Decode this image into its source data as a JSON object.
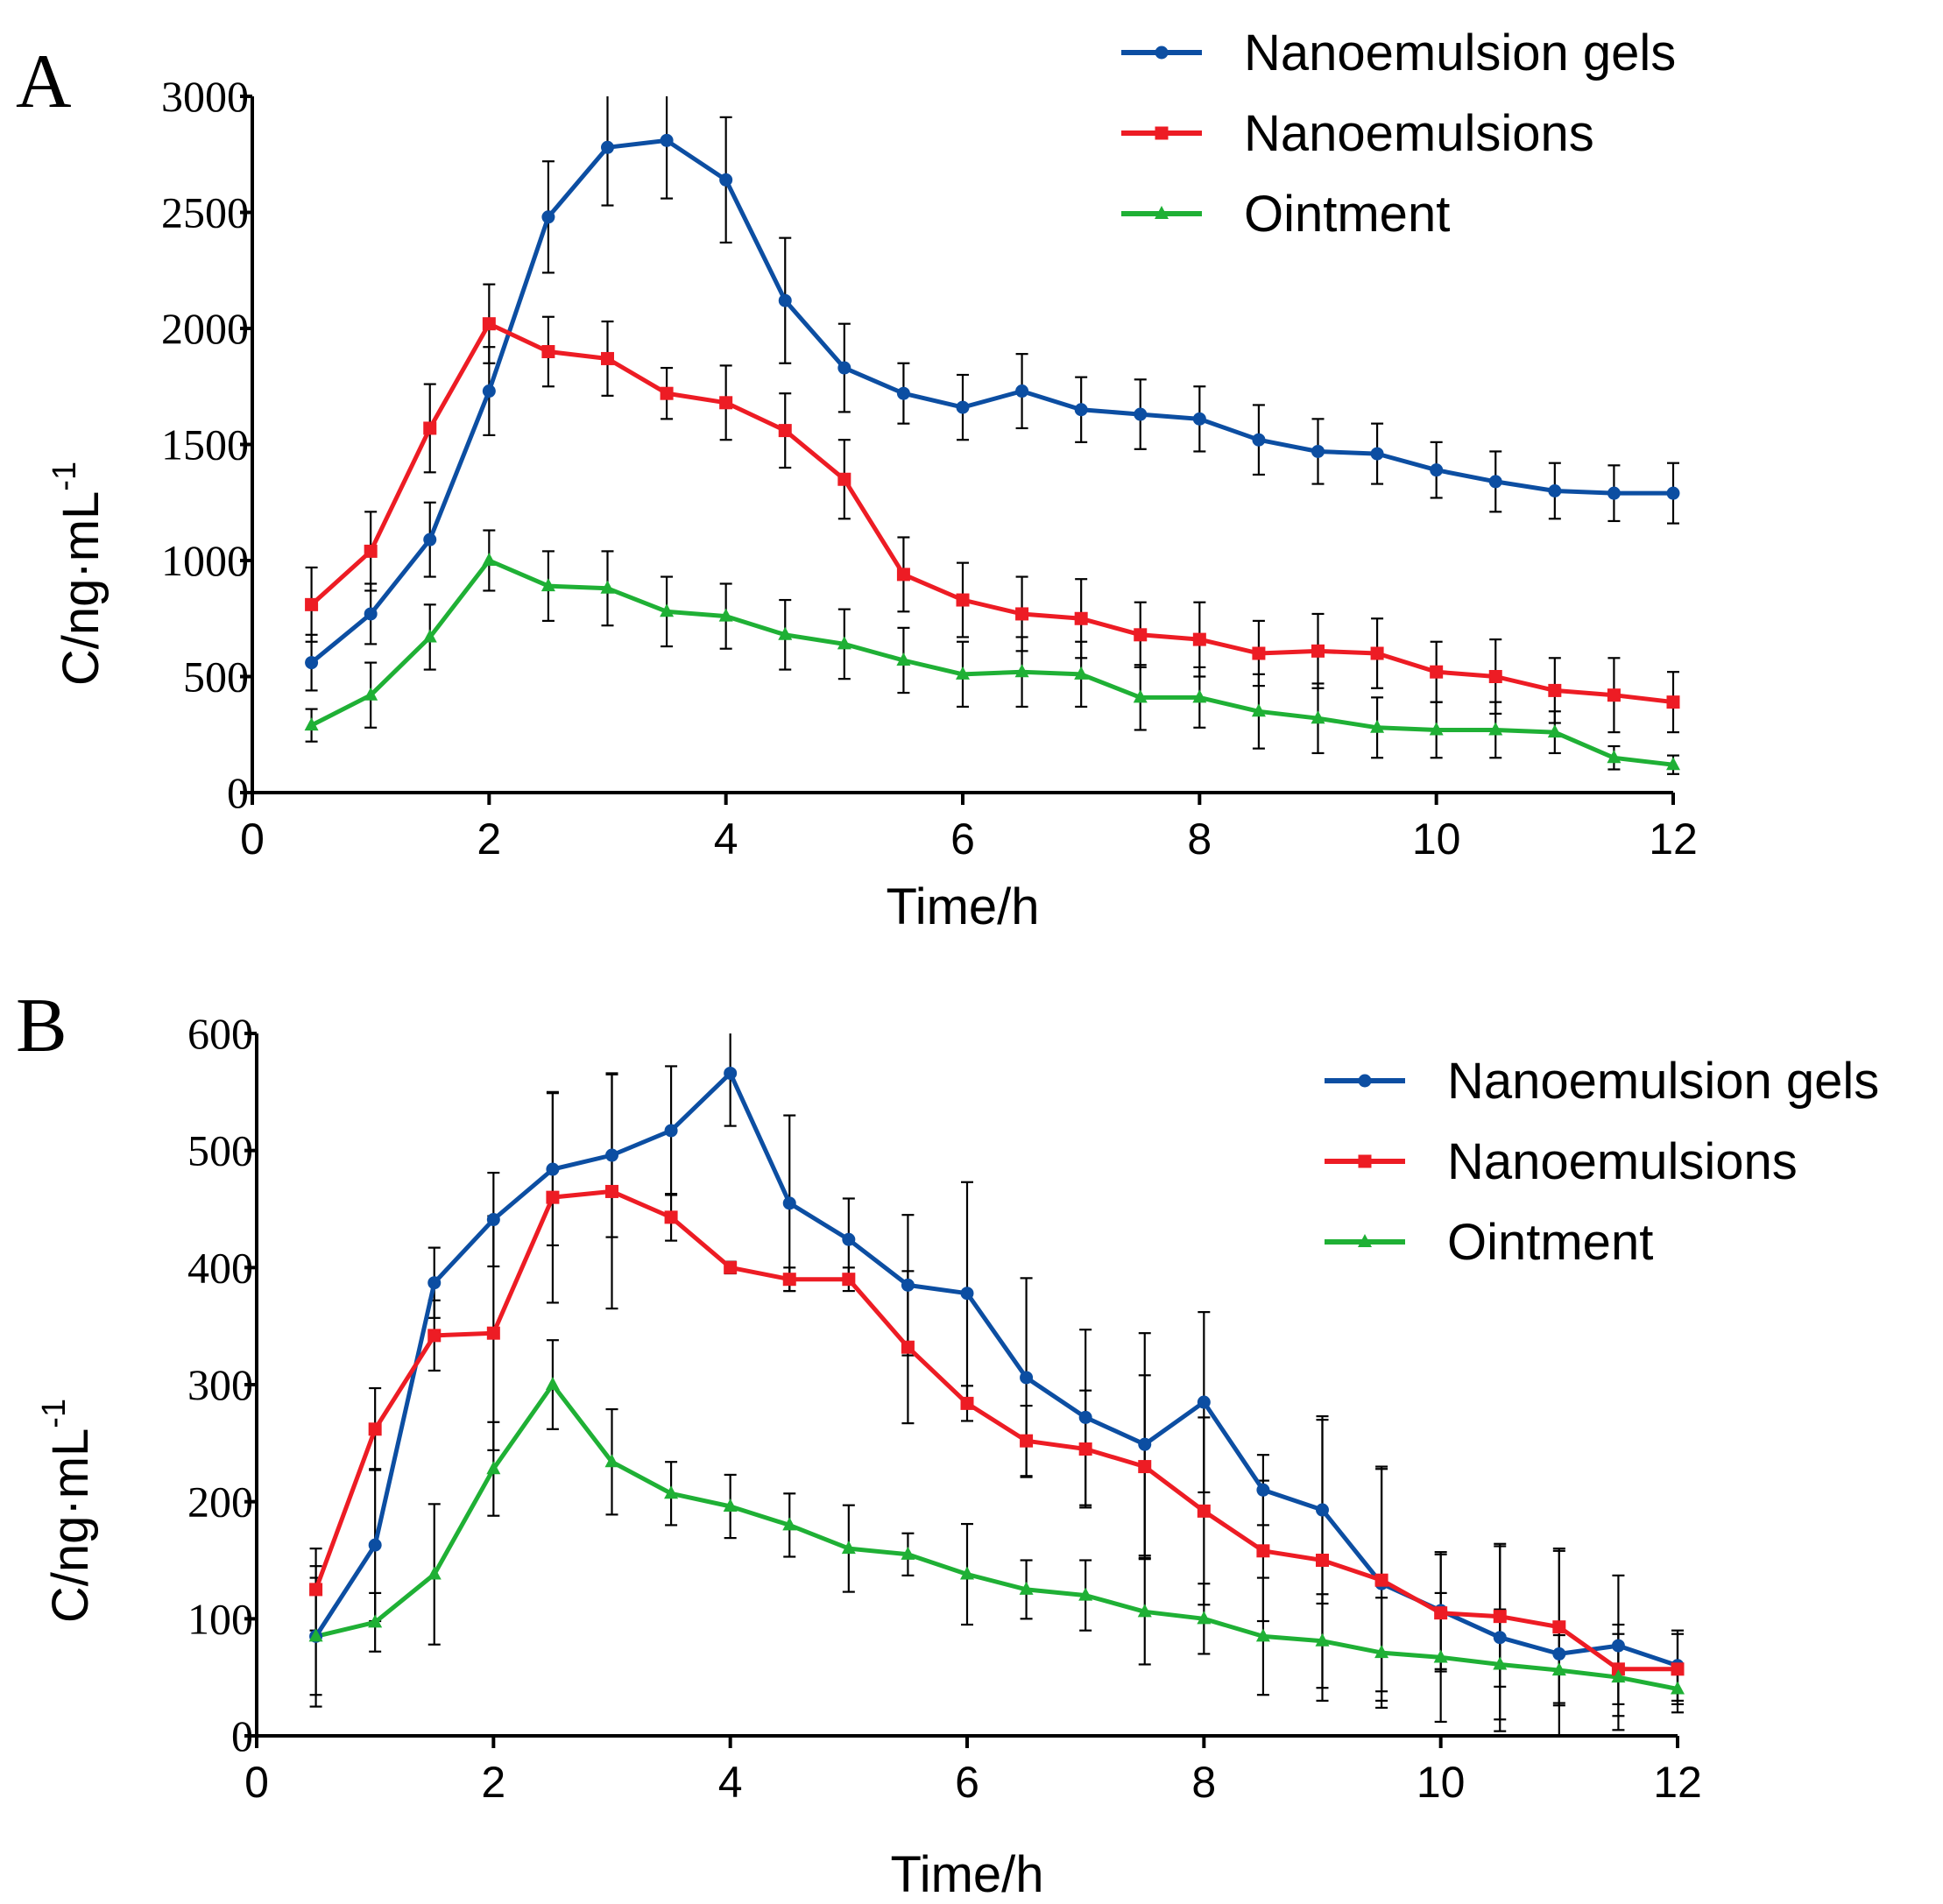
{
  "chart_data": [
    {
      "panel": "A",
      "type": "line",
      "title": "",
      "xlabel": "Time/h",
      "ylabel": "C/ng·mL",
      "ylabel_superscript": "-1",
      "xlim": [
        0,
        12
      ],
      "ylim": [
        0,
        3000
      ],
      "xticks": [
        "0",
        "2",
        "4",
        "6",
        "8",
        "10",
        "12"
      ],
      "yticks": [
        "0",
        "500",
        "1000",
        "1500",
        "2000",
        "2500",
        "3000"
      ],
      "legend_position": "top-right",
      "x": [
        0.5,
        1,
        1.5,
        2,
        2.5,
        3,
        3.5,
        4,
        4.5,
        5,
        5.5,
        6,
        6.5,
        7,
        7.5,
        8,
        8.5,
        9,
        9.5,
        10,
        10.5,
        11,
        11.5,
        12
      ],
      "series": [
        {
          "name": "Nanoemulsion gels",
          "color": "#0c4ea2",
          "marker": "circle",
          "values": [
            560,
            770,
            1090,
            1730,
            2480,
            2780,
            2810,
            2640,
            2120,
            1830,
            1720,
            1660,
            1730,
            1650,
            1630,
            1610,
            1520,
            1470,
            1460,
            1390,
            1340,
            1300,
            1290,
            1290
          ],
          "errors": [
            120,
            130,
            160,
            190,
            240,
            250,
            250,
            270,
            270,
            190,
            130,
            140,
            160,
            140,
            150,
            140,
            150,
            140,
            130,
            120,
            130,
            120,
            120,
            130
          ]
        },
        {
          "name": "Nanoemulsions",
          "color": "#ed1c24",
          "marker": "square",
          "values": [
            810,
            1040,
            1570,
            2020,
            1900,
            1870,
            1720,
            1680,
            1560,
            1350,
            940,
            830,
            770,
            750,
            680,
            660,
            600,
            610,
            600,
            520,
            500,
            440,
            420,
            390
          ],
          "errors": [
            160,
            170,
            190,
            170,
            150,
            160,
            110,
            160,
            160,
            170,
            160,
            160,
            160,
            170,
            140,
            160,
            140,
            160,
            150,
            130,
            160,
            140,
            160,
            130
          ]
        },
        {
          "name": "Ointment",
          "color": "#1fb035",
          "marker": "triangle",
          "values": [
            290,
            420,
            670,
            1000,
            890,
            880,
            780,
            760,
            680,
            640,
            570,
            510,
            520,
            510,
            410,
            410,
            350,
            320,
            280,
            270,
            270,
            260,
            150,
            120
          ],
          "errors": [
            70,
            140,
            140,
            130,
            150,
            160,
            150,
            140,
            150,
            150,
            140,
            140,
            150,
            140,
            140,
            130,
            160,
            150,
            130,
            120,
            120,
            90,
            50,
            40
          ]
        }
      ]
    },
    {
      "panel": "B",
      "type": "line",
      "title": "",
      "xlabel": "Time/h",
      "ylabel": "C/ng·mL",
      "ylabel_superscript": "-1",
      "xlim": [
        0,
        12
      ],
      "ylim": [
        0,
        600
      ],
      "xticks": [
        "0",
        "2",
        "4",
        "6",
        "8",
        "10",
        "12"
      ],
      "yticks": [
        "0",
        "100",
        "200",
        "300",
        "400",
        "500",
        "600"
      ],
      "legend_position": "top-right",
      "x": [
        0.5,
        1,
        1.5,
        2,
        2.5,
        3,
        3.5,
        4,
        4.5,
        5,
        5.5,
        6,
        6.5,
        7,
        7.5,
        8,
        8.5,
        9,
        9.5,
        10,
        10.5,
        11,
        11.5,
        12
      ],
      "series": [
        {
          "name": "Nanoemulsion gels",
          "color": "#0c4ea2",
          "marker": "circle",
          "values": [
            85,
            163,
            387,
            441,
            484,
            496,
            517,
            566,
            455,
            424,
            385,
            378,
            306,
            272,
            249,
            285,
            210,
            193,
            130,
            107,
            84,
            70,
            77,
            60
          ],
          "errors": [
            50,
            65,
            30,
            40,
            65,
            70,
            55,
            45,
            75,
            35,
            60,
            95,
            85,
            75,
            95,
            77,
            30,
            80,
            100,
            50,
            80,
            90,
            60,
            30
          ]
        },
        {
          "name": "Nanoemulsions",
          "color": "#ed1c24",
          "marker": "square",
          "values": [
            125,
            262,
            342,
            344,
            460,
            465,
            443,
            400,
            390,
            390,
            332,
            284,
            252,
            245,
            230,
            192,
            158,
            150,
            133,
            105,
            102,
            93,
            57,
            57
          ],
          "errors": [
            35,
            35,
            30,
            100,
            90,
            100,
            20,
            5,
            10,
            10,
            65,
            15,
            30,
            50,
            78,
            80,
            60,
            120,
            95,
            50,
            60,
            65,
            30,
            30
          ]
        },
        {
          "name": "Ointment",
          "color": "#1fb035",
          "marker": "triangle",
          "values": [
            85,
            97,
            138,
            228,
            300,
            234,
            207,
            196,
            180,
            160,
            155,
            138,
            125,
            120,
            106,
            100,
            85,
            81,
            71,
            67,
            61,
            56,
            50,
            40
          ],
          "errors": [
            60,
            25,
            60,
            40,
            38,
            45,
            27,
            27,
            27,
            37,
            18,
            43,
            25,
            30,
            45,
            30,
            50,
            40,
            47,
            55,
            47,
            30,
            45,
            20
          ]
        }
      ]
    }
  ]
}
